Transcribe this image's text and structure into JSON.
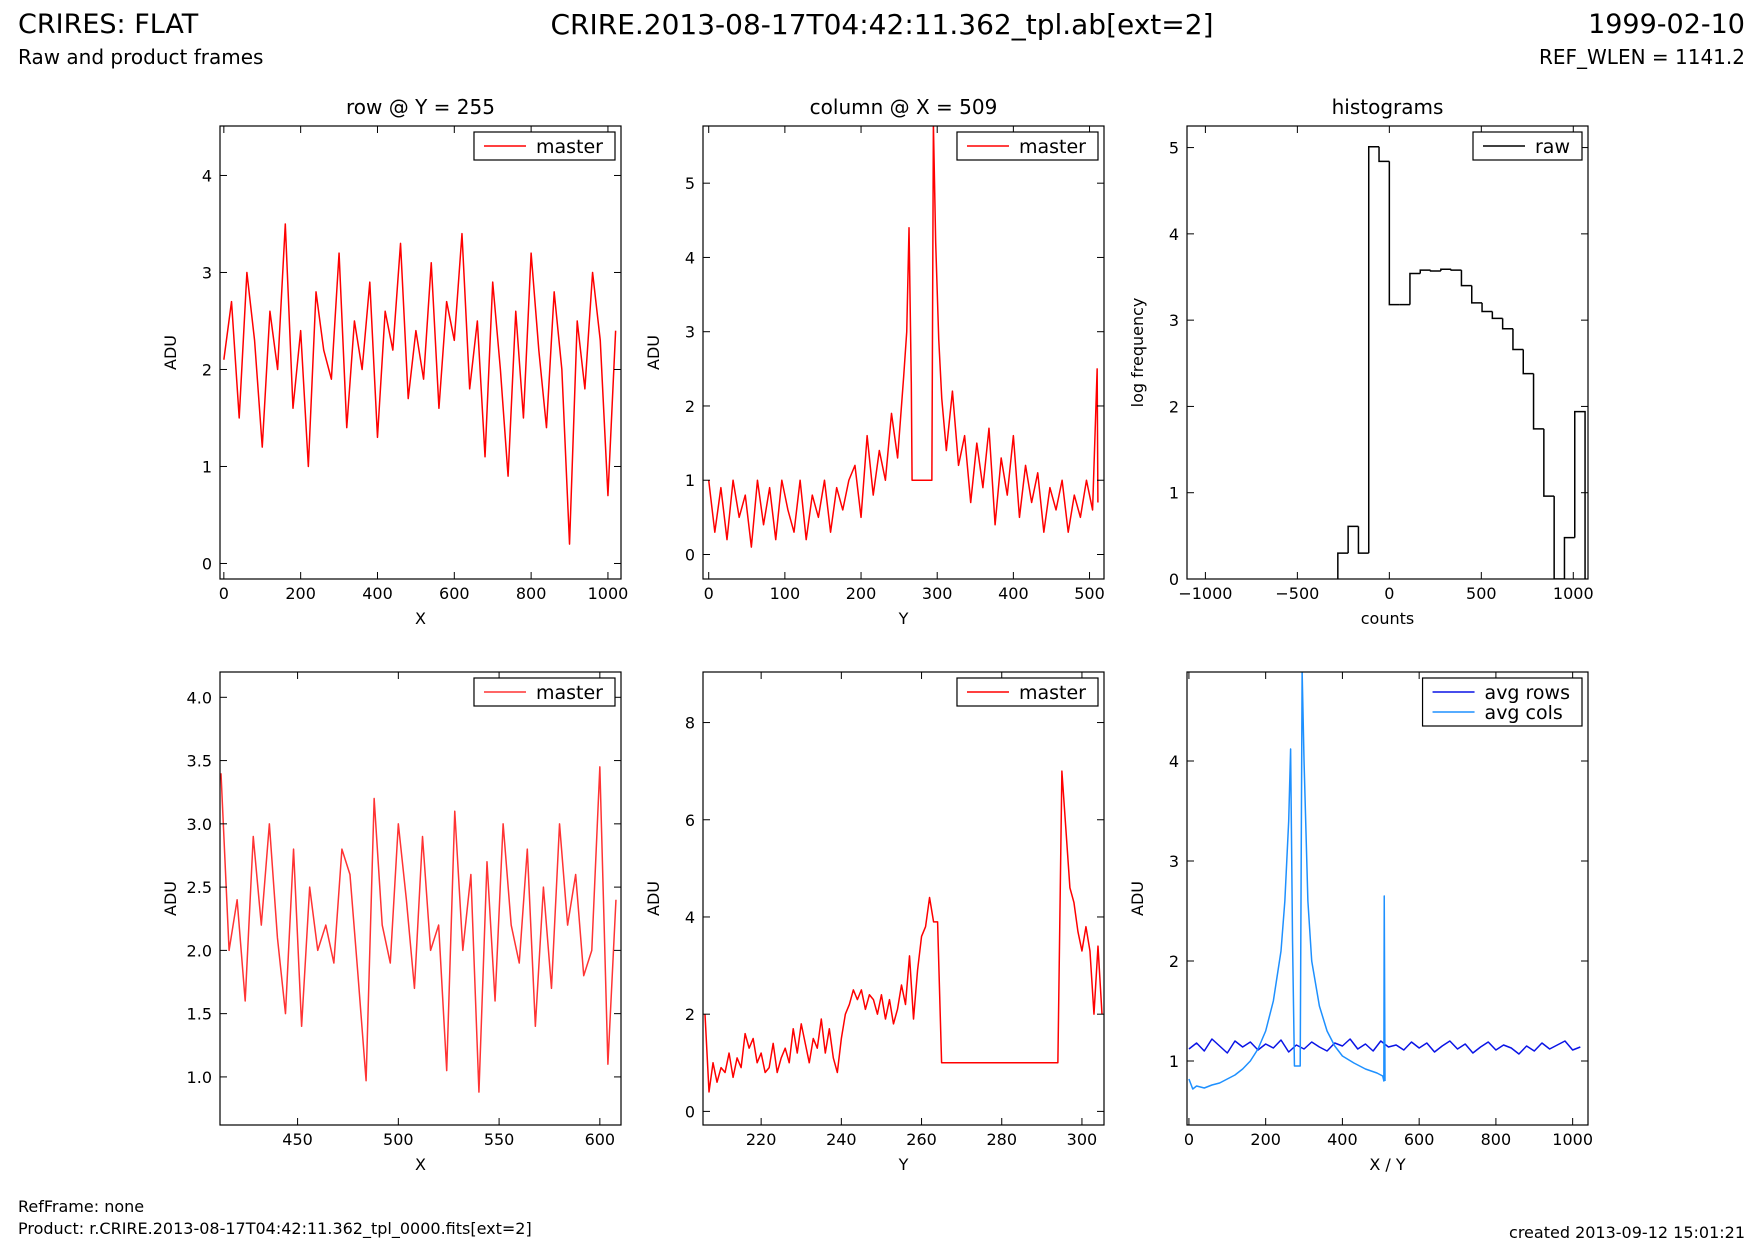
{
  "header": {
    "title": "CRIRES: FLAT",
    "subtitle": "Raw and product frames",
    "file": "CRIRE.2013-08-17T04:42:11.362_tpl.ab[ext=2]",
    "date": "1999-02-10",
    "ref_wlen": "REF_WLEN = 1141.2"
  },
  "footer": {
    "ref_frame": "RefFrame: none",
    "product": "Product: r.CRIRE.2013-08-17T04:42:11.362_tpl_0000.fits[ext=2]",
    "created": "created 2013-09-12 15:01:21"
  },
  "chart_data": [
    {
      "type": "line",
      "title": "row @ Y = 255",
      "xlabel": "X",
      "ylabel": "ADU",
      "legend": "upper right",
      "xlim": [
        -10,
        1034
      ],
      "ylim": [
        -0.16,
        4.51
      ],
      "xticks": [
        0,
        200,
        400,
        600,
        800,
        1000
      ],
      "yticks": [
        0,
        1,
        2,
        3,
        4
      ],
      "x": [
        0,
        20,
        40,
        60,
        80,
        100,
        120,
        140,
        160,
        180,
        200,
        220,
        240,
        260,
        280,
        300,
        320,
        340,
        360,
        380,
        400,
        420,
        440,
        460,
        480,
        500,
        520,
        540,
        560,
        580,
        600,
        620,
        640,
        660,
        680,
        700,
        720,
        740,
        760,
        780,
        800,
        820,
        840,
        860,
        880,
        900,
        920,
        940,
        960,
        980,
        1000,
        1020
      ],
      "series": [
        {
          "name": "master",
          "color": "#ff0000",
          "values": [
            2.1,
            2.7,
            1.5,
            3.0,
            2.3,
            1.2,
            2.6,
            2.0,
            3.5,
            1.6,
            2.4,
            1.0,
            2.8,
            2.2,
            1.9,
            3.2,
            1.4,
            2.5,
            2.0,
            2.9,
            1.3,
            2.6,
            2.2,
            3.3,
            1.7,
            2.4,
            1.9,
            3.1,
            1.6,
            2.7,
            2.3,
            3.4,
            1.8,
            2.5,
            1.1,
            2.9,
            2.0,
            0.9,
            2.6,
            1.5,
            3.2,
            2.2,
            1.4,
            2.8,
            2.0,
            0.2,
            2.5,
            1.8,
            3.0,
            2.3,
            0.7,
            2.4
          ]
        }
      ]
    },
    {
      "type": "line",
      "title": "column @ X = 509",
      "xlabel": "Y",
      "ylabel": "ADU",
      "legend": "upper right",
      "xlim": [
        -7.5,
        519
      ],
      "ylim": [
        -0.33,
        5.77
      ],
      "xticks": [
        0,
        100,
        200,
        300,
        400,
        500
      ],
      "yticks": [
        0,
        1,
        2,
        3,
        4,
        5
      ],
      "x": [
        0,
        8,
        16,
        24,
        32,
        40,
        48,
        56,
        64,
        72,
        80,
        88,
        96,
        104,
        112,
        120,
        128,
        136,
        144,
        152,
        160,
        168,
        176,
        184,
        192,
        200,
        208,
        216,
        224,
        232,
        240,
        248,
        256,
        260,
        263,
        266,
        267,
        293,
        295,
        298,
        302,
        306,
        312,
        320,
        328,
        336,
        344,
        352,
        360,
        368,
        376,
        384,
        392,
        400,
        408,
        416,
        424,
        432,
        440,
        448,
        456,
        464,
        472,
        480,
        488,
        496,
        504,
        510,
        511
      ],
      "series": [
        {
          "name": "master",
          "color": "#ff0000",
          "values": [
            1,
            0.3,
            0.9,
            0.2,
            1,
            0.5,
            0.8,
            0.1,
            1,
            0.4,
            0.9,
            0.2,
            1,
            0.6,
            0.3,
            1,
            0.2,
            0.8,
            0.5,
            1,
            0.3,
            0.9,
            0.6,
            1,
            1.2,
            0.5,
            1.6,
            0.8,
            1.4,
            1.0,
            1.9,
            1.3,
            2.4,
            3.0,
            4.4,
            2.3,
            1,
            1,
            5.8,
            4.2,
            2.9,
            2.1,
            1.4,
            2.2,
            1.2,
            1.6,
            0.7,
            1.5,
            0.9,
            1.7,
            0.4,
            1.3,
            0.8,
            1.6,
            0.5,
            1.2,
            0.7,
            1.1,
            0.3,
            0.9,
            0.6,
            1.0,
            0.3,
            0.8,
            0.5,
            1.0,
            0.6,
            2.5,
            0.7
          ]
        }
      ]
    },
    {
      "type": "histogram",
      "title": "histograms",
      "xlabel": "counts",
      "ylabel": "log frequency",
      "legend": "upper right",
      "xlim": [
        -1100,
        1080
      ],
      "ylim": [
        0,
        5.25
      ],
      "xticks": [
        {
          "value": -1000,
          "label": "−1000"
        },
        {
          "value": -500,
          "label": "−500"
        },
        0,
        500,
        1000
      ],
      "yticks": [
        0,
        1,
        2,
        3,
        4,
        5
      ],
      "bins": [
        -280,
        -224,
        -168,
        -112,
        -56,
        0,
        56,
        112,
        168,
        224,
        280,
        336,
        392,
        448,
        504,
        560,
        616,
        672,
        728,
        784,
        840,
        896,
        952,
        1008,
        1064
      ],
      "series": [
        {
          "name": "raw",
          "color": "#000000",
          "values": [
            0.3,
            0.61,
            0.3,
            5.01,
            4.84,
            3.18,
            3.18,
            3.54,
            3.58,
            3.57,
            3.59,
            3.58,
            3.4,
            3.2,
            3.1,
            3.02,
            2.9,
            2.66,
            2.38,
            1.74,
            0.96,
            0,
            0.48,
            1.94
          ]
        }
      ]
    },
    {
      "type": "line",
      "xlabel": "X",
      "ylabel": "ADU",
      "legend": "upper right",
      "xlim": [
        411.5,
        610.5
      ],
      "ylim": [
        0.62,
        4.2
      ],
      "xticks": [
        450,
        500,
        550,
        600
      ],
      "yticks": [
        {
          "value": 1,
          "label": "1.0"
        },
        1.5,
        {
          "value": 2,
          "label": "2.0"
        },
        2.5,
        {
          "value": 3,
          "label": "3.0"
        },
        3.5,
        {
          "value": 4,
          "label": "4.0"
        }
      ],
      "x": [
        412,
        416,
        420,
        424,
        428,
        432,
        436,
        440,
        444,
        448,
        452,
        456,
        460,
        464,
        468,
        472,
        476,
        480,
        484,
        488,
        492,
        496,
        500,
        504,
        508,
        512,
        516,
        520,
        524,
        528,
        532,
        536,
        540,
        544,
        548,
        552,
        556,
        560,
        564,
        568,
        572,
        576,
        580,
        584,
        588,
        592,
        596,
        600,
        604,
        608
      ],
      "series": [
        {
          "name": "master",
          "color": "#ff3333",
          "values": [
            3.4,
            2.0,
            2.4,
            1.6,
            2.9,
            2.2,
            3.0,
            2.1,
            1.5,
            2.8,
            1.4,
            2.5,
            2.0,
            2.2,
            1.9,
            2.8,
            2.6,
            1.8,
            0.97,
            3.2,
            2.2,
            1.9,
            3.0,
            2.4,
            1.7,
            2.9,
            2.0,
            2.2,
            1.05,
            3.1,
            2.0,
            2.6,
            0.88,
            2.7,
            1.6,
            3.0,
            2.2,
            1.9,
            2.8,
            1.4,
            2.5,
            1.7,
            3.0,
            2.2,
            2.6,
            1.8,
            2.0,
            3.45,
            1.1,
            2.4
          ]
        }
      ]
    },
    {
      "type": "line",
      "xlabel": "Y",
      "ylabel": "ADU",
      "legend": "upper right",
      "xlim": [
        205.5,
        305.5
      ],
      "ylim": [
        -0.28,
        9.04
      ],
      "xticks": [
        220,
        240,
        260,
        280,
        300
      ],
      "yticks": [
        0,
        2,
        4,
        6,
        8
      ],
      "x": [
        206,
        207,
        208,
        209,
        210,
        211,
        212,
        213,
        214,
        215,
        216,
        217,
        218,
        219,
        220,
        221,
        222,
        223,
        224,
        225,
        226,
        227,
        228,
        229,
        230,
        231,
        232,
        233,
        234,
        235,
        236,
        237,
        238,
        239,
        240,
        241,
        242,
        243,
        244,
        245,
        246,
        247,
        248,
        249,
        250,
        251,
        252,
        253,
        254,
        255,
        256,
        257,
        258,
        259,
        260,
        261,
        262,
        263,
        264,
        265,
        266,
        267,
        268,
        269,
        270,
        271,
        272,
        273,
        274,
        275,
        276,
        277,
        278,
        279,
        280,
        281,
        282,
        283,
        284,
        285,
        286,
        287,
        288,
        289,
        290,
        291,
        292,
        293,
        294,
        295,
        296,
        297,
        298,
        299,
        300,
        301,
        302,
        303,
        304,
        305
      ],
      "series": [
        {
          "name": "master",
          "color": "#ff0000",
          "values": [
            2.0,
            0.4,
            1.0,
            0.6,
            0.9,
            0.8,
            1.2,
            0.7,
            1.1,
            0.9,
            1.6,
            1.3,
            1.5,
            1.0,
            1.2,
            0.8,
            0.9,
            1.4,
            0.8,
            1.1,
            1.3,
            1.0,
            1.7,
            1.2,
            1.8,
            1.4,
            1.0,
            1.5,
            1.3,
            1.9,
            1.2,
            1.7,
            1.1,
            0.8,
            1.5,
            2.0,
            2.2,
            2.5,
            2.3,
            2.5,
            2.1,
            2.4,
            2.3,
            2.0,
            2.4,
            1.9,
            2.3,
            1.8,
            2.1,
            2.6,
            2.2,
            3.2,
            1.9,
            2.9,
            3.6,
            3.8,
            4.4,
            3.9,
            3.9,
            1.0,
            1,
            1,
            1,
            1,
            1,
            1,
            1,
            1,
            1,
            1,
            1,
            1,
            1,
            1,
            1,
            1,
            1,
            1,
            1,
            1,
            1,
            1,
            1,
            1,
            1,
            1,
            1,
            1,
            1,
            7.0,
            5.8,
            4.6,
            4.3,
            3.7,
            3.3,
            3.8,
            3.3,
            2.0,
            3.4,
            2.0
          ]
        }
      ]
    },
    {
      "type": "line",
      "xlabel": "X / Y",
      "ylabel": "ADU",
      "legend": "upper right",
      "xlim": [
        -5,
        1040
      ],
      "ylim": [
        0.36,
        4.89
      ],
      "xticks": [
        0,
        200,
        400,
        600,
        800,
        1000
      ],
      "yticks": [
        1,
        2,
        3,
        4
      ],
      "series": [
        {
          "name": "avg rows",
          "color": "#0a14e6",
          "x": [
            0,
            20,
            40,
            60,
            80,
            100,
            120,
            140,
            160,
            180,
            200,
            220,
            240,
            260,
            280,
            300,
            320,
            340,
            360,
            380,
            400,
            420,
            440,
            460,
            480,
            500,
            520,
            540,
            560,
            580,
            600,
            620,
            640,
            660,
            680,
            700,
            720,
            740,
            760,
            780,
            800,
            820,
            840,
            860,
            880,
            900,
            920,
            940,
            960,
            980,
            1000,
            1020
          ],
          "values": [
            1.12,
            1.18,
            1.1,
            1.22,
            1.15,
            1.08,
            1.2,
            1.14,
            1.19,
            1.11,
            1.17,
            1.13,
            1.21,
            1.09,
            1.16,
            1.12,
            1.19,
            1.14,
            1.1,
            1.18,
            1.15,
            1.22,
            1.12,
            1.17,
            1.1,
            1.2,
            1.14,
            1.16,
            1.11,
            1.19,
            1.13,
            1.18,
            1.09,
            1.15,
            1.2,
            1.12,
            1.17,
            1.08,
            1.14,
            1.19,
            1.11,
            1.16,
            1.13,
            1.07,
            1.15,
            1.1,
            1.18,
            1.12,
            1.16,
            1.2,
            1.11,
            1.14
          ]
        },
        {
          "name": "avg cols",
          "color": "#1e90ff",
          "x": [
            0,
            10,
            20,
            40,
            60,
            80,
            100,
            120,
            140,
            160,
            180,
            200,
            220,
            240,
            250,
            260,
            265,
            270,
            275,
            290,
            295,
            300,
            310,
            320,
            340,
            360,
            380,
            400,
            430,
            460,
            490,
            505,
            508,
            509,
            511
          ],
          "values": [
            0.82,
            0.72,
            0.75,
            0.73,
            0.76,
            0.78,
            0.82,
            0.86,
            0.92,
            1.0,
            1.12,
            1.3,
            1.6,
            2.1,
            2.6,
            3.4,
            4.12,
            2.2,
            0.95,
            0.95,
            4.9,
            4.0,
            2.6,
            2.0,
            1.55,
            1.3,
            1.15,
            1.05,
            0.98,
            0.92,
            0.88,
            0.85,
            0.8,
            2.65,
            0.8
          ]
        }
      ]
    }
  ]
}
